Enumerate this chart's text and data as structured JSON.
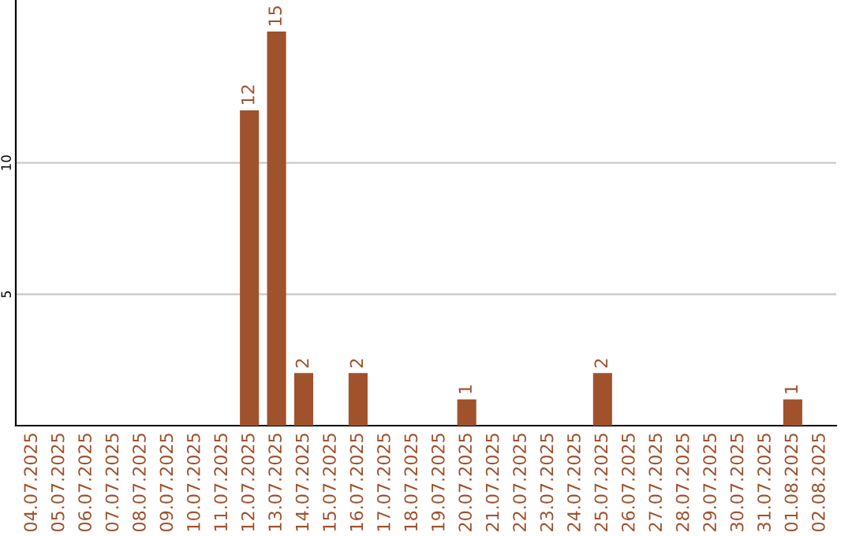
{
  "chart_data": {
    "type": "bar",
    "categories": [
      "04.07.2025",
      "05.07.2025",
      "06.07.2025",
      "07.07.2025",
      "08.07.2025",
      "09.07.2025",
      "10.07.2025",
      "11.07.2025",
      "12.07.2025",
      "13.07.2025",
      "14.07.2025",
      "15.07.2025",
      "16.07.2025",
      "17.07.2025",
      "18.07.2025",
      "19.07.2025",
      "20.07.2025",
      "21.07.2025",
      "22.07.2025",
      "23.07.2025",
      "24.07.2025",
      "25.07.2025",
      "26.07.2025",
      "27.07.2025",
      "28.07.2025",
      "29.07.2025",
      "30.07.2025",
      "31.07.2025",
      "01.08.2025",
      "02.08.2025"
    ],
    "values": [
      0,
      0,
      0,
      0,
      0,
      0,
      0,
      0,
      12,
      15,
      2,
      0,
      2,
      0,
      0,
      0,
      1,
      0,
      0,
      0,
      0,
      2,
      0,
      0,
      0,
      0,
      0,
      0,
      1,
      0
    ],
    "value_labels": [
      null,
      null,
      null,
      null,
      null,
      null,
      null,
      null,
      "12",
      "15",
      "2",
      null,
      "2",
      null,
      null,
      null,
      "1",
      null,
      null,
      null,
      null,
      "2",
      null,
      null,
      null,
      null,
      null,
      null,
      "1",
      null
    ],
    "color": "#a0522d",
    "ylim": [
      0,
      16.2
    ],
    "yticks": [
      5,
      10
    ],
    "grid": "y",
    "legend": false
  }
}
